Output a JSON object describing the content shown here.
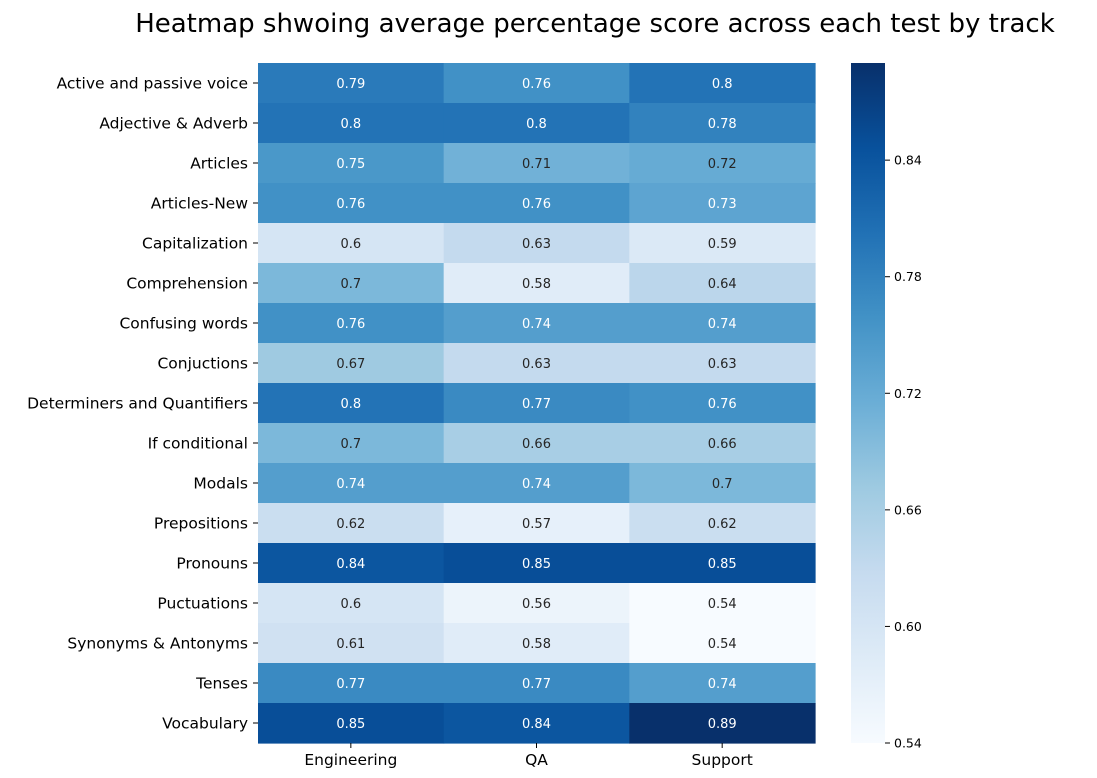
{
  "chart_data": {
    "type": "heatmap",
    "title": "Heatmap shwoing average percentage score across each test by track",
    "columns": [
      "Engineering",
      "QA",
      "Support"
    ],
    "rows": [
      "Active and passive voice",
      "Adjective & Adverb",
      "Articles",
      "Articles-New",
      "Capitalization",
      "Comprehension",
      "Confusing words",
      "Conjuctions",
      "Determiners and Quantifiers",
      "If conditional",
      "Modals",
      "Prepositions",
      "Pronouns",
      "Puctuations",
      "Synonyms & Antonyms",
      "Tenses",
      "Vocabulary"
    ],
    "values": [
      [
        0.79,
        0.76,
        0.8
      ],
      [
        0.8,
        0.8,
        0.78
      ],
      [
        0.75,
        0.71,
        0.72
      ],
      [
        0.76,
        0.76,
        0.73
      ],
      [
        0.6,
        0.63,
        0.59
      ],
      [
        0.7,
        0.58,
        0.64
      ],
      [
        0.76,
        0.74,
        0.74
      ],
      [
        0.67,
        0.63,
        0.63
      ],
      [
        0.8,
        0.77,
        0.76
      ],
      [
        0.7,
        0.66,
        0.66
      ],
      [
        0.74,
        0.74,
        0.7
      ],
      [
        0.62,
        0.57,
        0.62
      ],
      [
        0.84,
        0.85,
        0.85
      ],
      [
        0.6,
        0.56,
        0.54
      ],
      [
        0.61,
        0.58,
        0.54
      ],
      [
        0.77,
        0.77,
        0.74
      ],
      [
        0.85,
        0.84,
        0.89
      ]
    ],
    "colormap": "Blues",
    "vmin": 0.54,
    "vmax": 0.89,
    "colorbar_ticks": [
      "0.54",
      "0.60",
      "0.66",
      "0.72",
      "0.78",
      "0.84"
    ],
    "annotated": true,
    "grid": false
  }
}
